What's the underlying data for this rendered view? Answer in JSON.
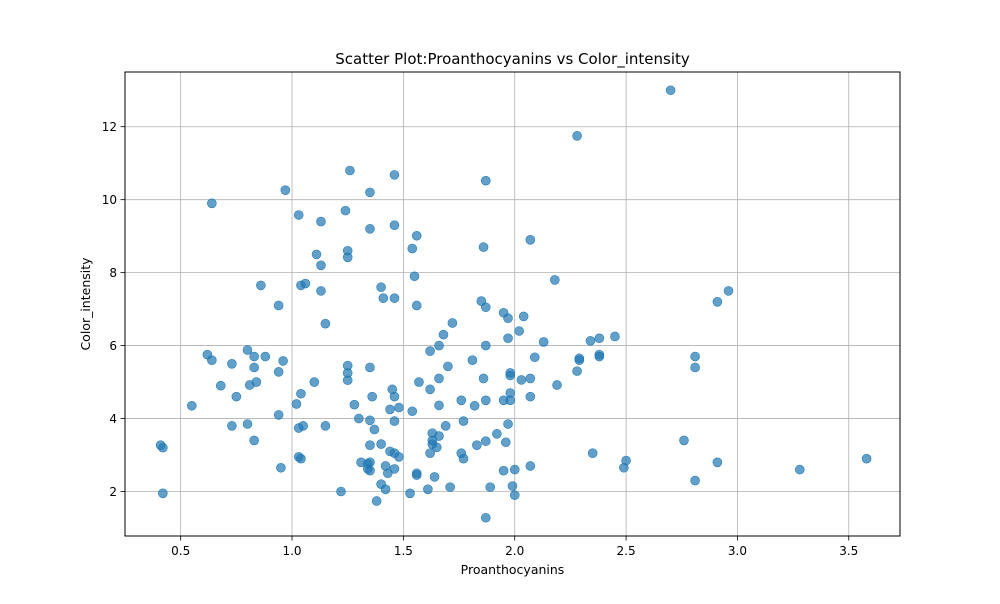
{
  "chart_data": {
    "type": "scatter",
    "title": "Scatter Plot:Proanthocyanins vs Color_intensity",
    "xlabel": "Proanthocyanins",
    "ylabel": "Color_intensity",
    "xlim": [
      0.25,
      3.73
    ],
    "ylim": [
      0.78,
      13.5
    ],
    "x_ticks": [
      0.5,
      1.0,
      1.5,
      2.0,
      2.5,
      3.0,
      3.5
    ],
    "x_tick_labels": [
      "0.5",
      "1.0",
      "1.5",
      "2.0",
      "2.5",
      "3.0",
      "3.5"
    ],
    "y_ticks": [
      2,
      4,
      6,
      8,
      10,
      12
    ],
    "y_tick_labels": [
      "2",
      "4",
      "6",
      "8",
      "10",
      "12"
    ],
    "grid": true,
    "marker_color": "#1f77b4",
    "marker_alpha": 0.7,
    "points": [
      [
        0.41,
        3.27
      ],
      [
        0.42,
        3.2
      ],
      [
        0.42,
        1.95
      ],
      [
        0.55,
        4.35
      ],
      [
        0.62,
        5.75
      ],
      [
        0.64,
        5.6
      ],
      [
        0.64,
        9.9
      ],
      [
        0.68,
        4.9
      ],
      [
        0.73,
        5.5
      ],
      [
        0.73,
        3.8
      ],
      [
        0.75,
        4.6
      ],
      [
        0.8,
        5.88
      ],
      [
        0.8,
        3.85
      ],
      [
        0.81,
        4.92
      ],
      [
        0.83,
        5.7
      ],
      [
        0.83,
        5.4
      ],
      [
        0.83,
        3.4
      ],
      [
        0.84,
        5.0
      ],
      [
        0.86,
        7.65
      ],
      [
        0.88,
        5.7
      ],
      [
        0.94,
        7.1
      ],
      [
        0.94,
        5.28
      ],
      [
        0.94,
        4.1
      ],
      [
        0.95,
        2.65
      ],
      [
        0.96,
        5.58
      ],
      [
        0.97,
        10.26
      ],
      [
        1.02,
        4.4
      ],
      [
        1.03,
        9.58
      ],
      [
        1.03,
        3.74
      ],
      [
        1.03,
        2.95
      ],
      [
        1.04,
        7.65
      ],
      [
        1.04,
        4.68
      ],
      [
        1.04,
        2.9
      ],
      [
        1.05,
        3.8
      ],
      [
        1.06,
        7.7
      ],
      [
        1.1,
        5.0
      ],
      [
        1.11,
        8.5
      ],
      [
        1.13,
        9.4
      ],
      [
        1.13,
        8.2
      ],
      [
        1.13,
        7.5
      ],
      [
        1.15,
        6.6
      ],
      [
        1.15,
        3.8
      ],
      [
        1.22,
        2.0
      ],
      [
        1.24,
        9.7
      ],
      [
        1.25,
        8.6
      ],
      [
        1.25,
        8.42
      ],
      [
        1.25,
        5.45
      ],
      [
        1.25,
        5.25
      ],
      [
        1.25,
        5.05
      ],
      [
        1.26,
        10.8
      ],
      [
        1.28,
        4.38
      ],
      [
        1.3,
        4.0
      ],
      [
        1.31,
        2.8
      ],
      [
        1.34,
        2.76
      ],
      [
        1.34,
        2.62
      ],
      [
        1.35,
        10.2
      ],
      [
        1.35,
        9.2
      ],
      [
        1.35,
        5.4
      ],
      [
        1.35,
        3.27
      ],
      [
        1.35,
        3.95
      ],
      [
        1.35,
        2.8
      ],
      [
        1.35,
        2.57
      ],
      [
        1.36,
        4.6
      ],
      [
        1.37,
        3.7
      ],
      [
        1.38,
        1.74
      ],
      [
        1.4,
        3.3
      ],
      [
        1.4,
        2.2
      ],
      [
        1.4,
        7.6
      ],
      [
        1.41,
        7.3
      ],
      [
        1.42,
        2.7
      ],
      [
        1.42,
        2.06
      ],
      [
        1.43,
        2.5
      ],
      [
        1.44,
        4.25
      ],
      [
        1.44,
        3.1
      ],
      [
        1.45,
        4.8
      ],
      [
        1.46,
        10.68
      ],
      [
        1.46,
        9.3
      ],
      [
        1.46,
        7.3
      ],
      [
        1.46,
        4.6
      ],
      [
        1.46,
        3.93
      ],
      [
        1.46,
        3.05
      ],
      [
        1.46,
        2.62
      ],
      [
        1.48,
        4.3
      ],
      [
        1.48,
        2.95
      ],
      [
        1.53,
        1.95
      ],
      [
        1.54,
        8.66
      ],
      [
        1.54,
        4.2
      ],
      [
        1.55,
        7.9
      ],
      [
        1.56,
        9.01
      ],
      [
        1.56,
        7.1
      ],
      [
        1.56,
        2.5
      ],
      [
        1.56,
        2.45
      ],
      [
        1.57,
        5.0
      ],
      [
        1.61,
        2.06
      ],
      [
        1.62,
        5.85
      ],
      [
        1.62,
        4.8
      ],
      [
        1.62,
        3.05
      ],
      [
        1.63,
        3.6
      ],
      [
        1.63,
        3.4
      ],
      [
        1.63,
        3.3
      ],
      [
        1.64,
        2.4
      ],
      [
        1.65,
        3.21
      ],
      [
        1.66,
        6.0
      ],
      [
        1.66,
        5.1
      ],
      [
        1.66,
        4.36
      ],
      [
        1.66,
        3.52
      ],
      [
        1.68,
        6.3
      ],
      [
        1.69,
        3.8
      ],
      [
        1.7,
        5.43
      ],
      [
        1.71,
        2.12
      ],
      [
        1.72,
        6.62
      ],
      [
        1.76,
        4.5
      ],
      [
        1.76,
        3.05
      ],
      [
        1.77,
        3.93
      ],
      [
        1.77,
        2.9
      ],
      [
        1.81,
        5.6
      ],
      [
        1.82,
        4.35
      ],
      [
        1.83,
        3.27
      ],
      [
        1.85,
        7.22
      ],
      [
        1.86,
        8.7
      ],
      [
        1.86,
        5.1
      ],
      [
        1.87,
        10.52
      ],
      [
        1.87,
        7.05
      ],
      [
        1.87,
        6.0
      ],
      [
        1.87,
        4.5
      ],
      [
        1.87,
        3.38
      ],
      [
        1.87,
        1.28
      ],
      [
        1.89,
        2.12
      ],
      [
        1.92,
        3.58
      ],
      [
        1.95,
        6.9
      ],
      [
        1.95,
        4.5
      ],
      [
        1.95,
        2.57
      ],
      [
        1.96,
        3.35
      ],
      [
        1.97,
        6.75
      ],
      [
        1.97,
        6.2
      ],
      [
        1.97,
        3.85
      ],
      [
        1.98,
        5.25
      ],
      [
        1.98,
        5.18
      ],
      [
        1.98,
        4.7
      ],
      [
        1.98,
        4.5
      ],
      [
        1.99,
        2.15
      ],
      [
        2.0,
        2.6
      ],
      [
        2.0,
        1.9
      ],
      [
        2.02,
        6.4
      ],
      [
        2.03,
        5.06
      ],
      [
        2.04,
        6.8
      ],
      [
        2.07,
        8.9
      ],
      [
        2.07,
        5.1
      ],
      [
        2.07,
        4.6
      ],
      [
        2.07,
        2.7
      ],
      [
        2.09,
        5.68
      ],
      [
        2.13,
        6.1
      ],
      [
        2.18,
        7.8
      ],
      [
        2.19,
        4.92
      ],
      [
        2.28,
        11.75
      ],
      [
        2.28,
        5.3
      ],
      [
        2.29,
        5.65
      ],
      [
        2.29,
        5.6
      ],
      [
        2.34,
        6.13
      ],
      [
        2.35,
        3.05
      ],
      [
        2.38,
        6.2
      ],
      [
        2.38,
        5.75
      ],
      [
        2.38,
        5.7
      ],
      [
        2.45,
        6.25
      ],
      [
        2.49,
        2.65
      ],
      [
        2.5,
        2.85
      ],
      [
        2.7,
        13.0
      ],
      [
        2.76,
        3.4
      ],
      [
        2.81,
        5.7
      ],
      [
        2.81,
        5.4
      ],
      [
        2.81,
        2.3
      ],
      [
        2.91,
        7.2
      ],
      [
        2.91,
        2.8
      ],
      [
        2.96,
        7.5
      ],
      [
        3.28,
        2.6
      ],
      [
        3.58,
        2.9
      ]
    ]
  }
}
